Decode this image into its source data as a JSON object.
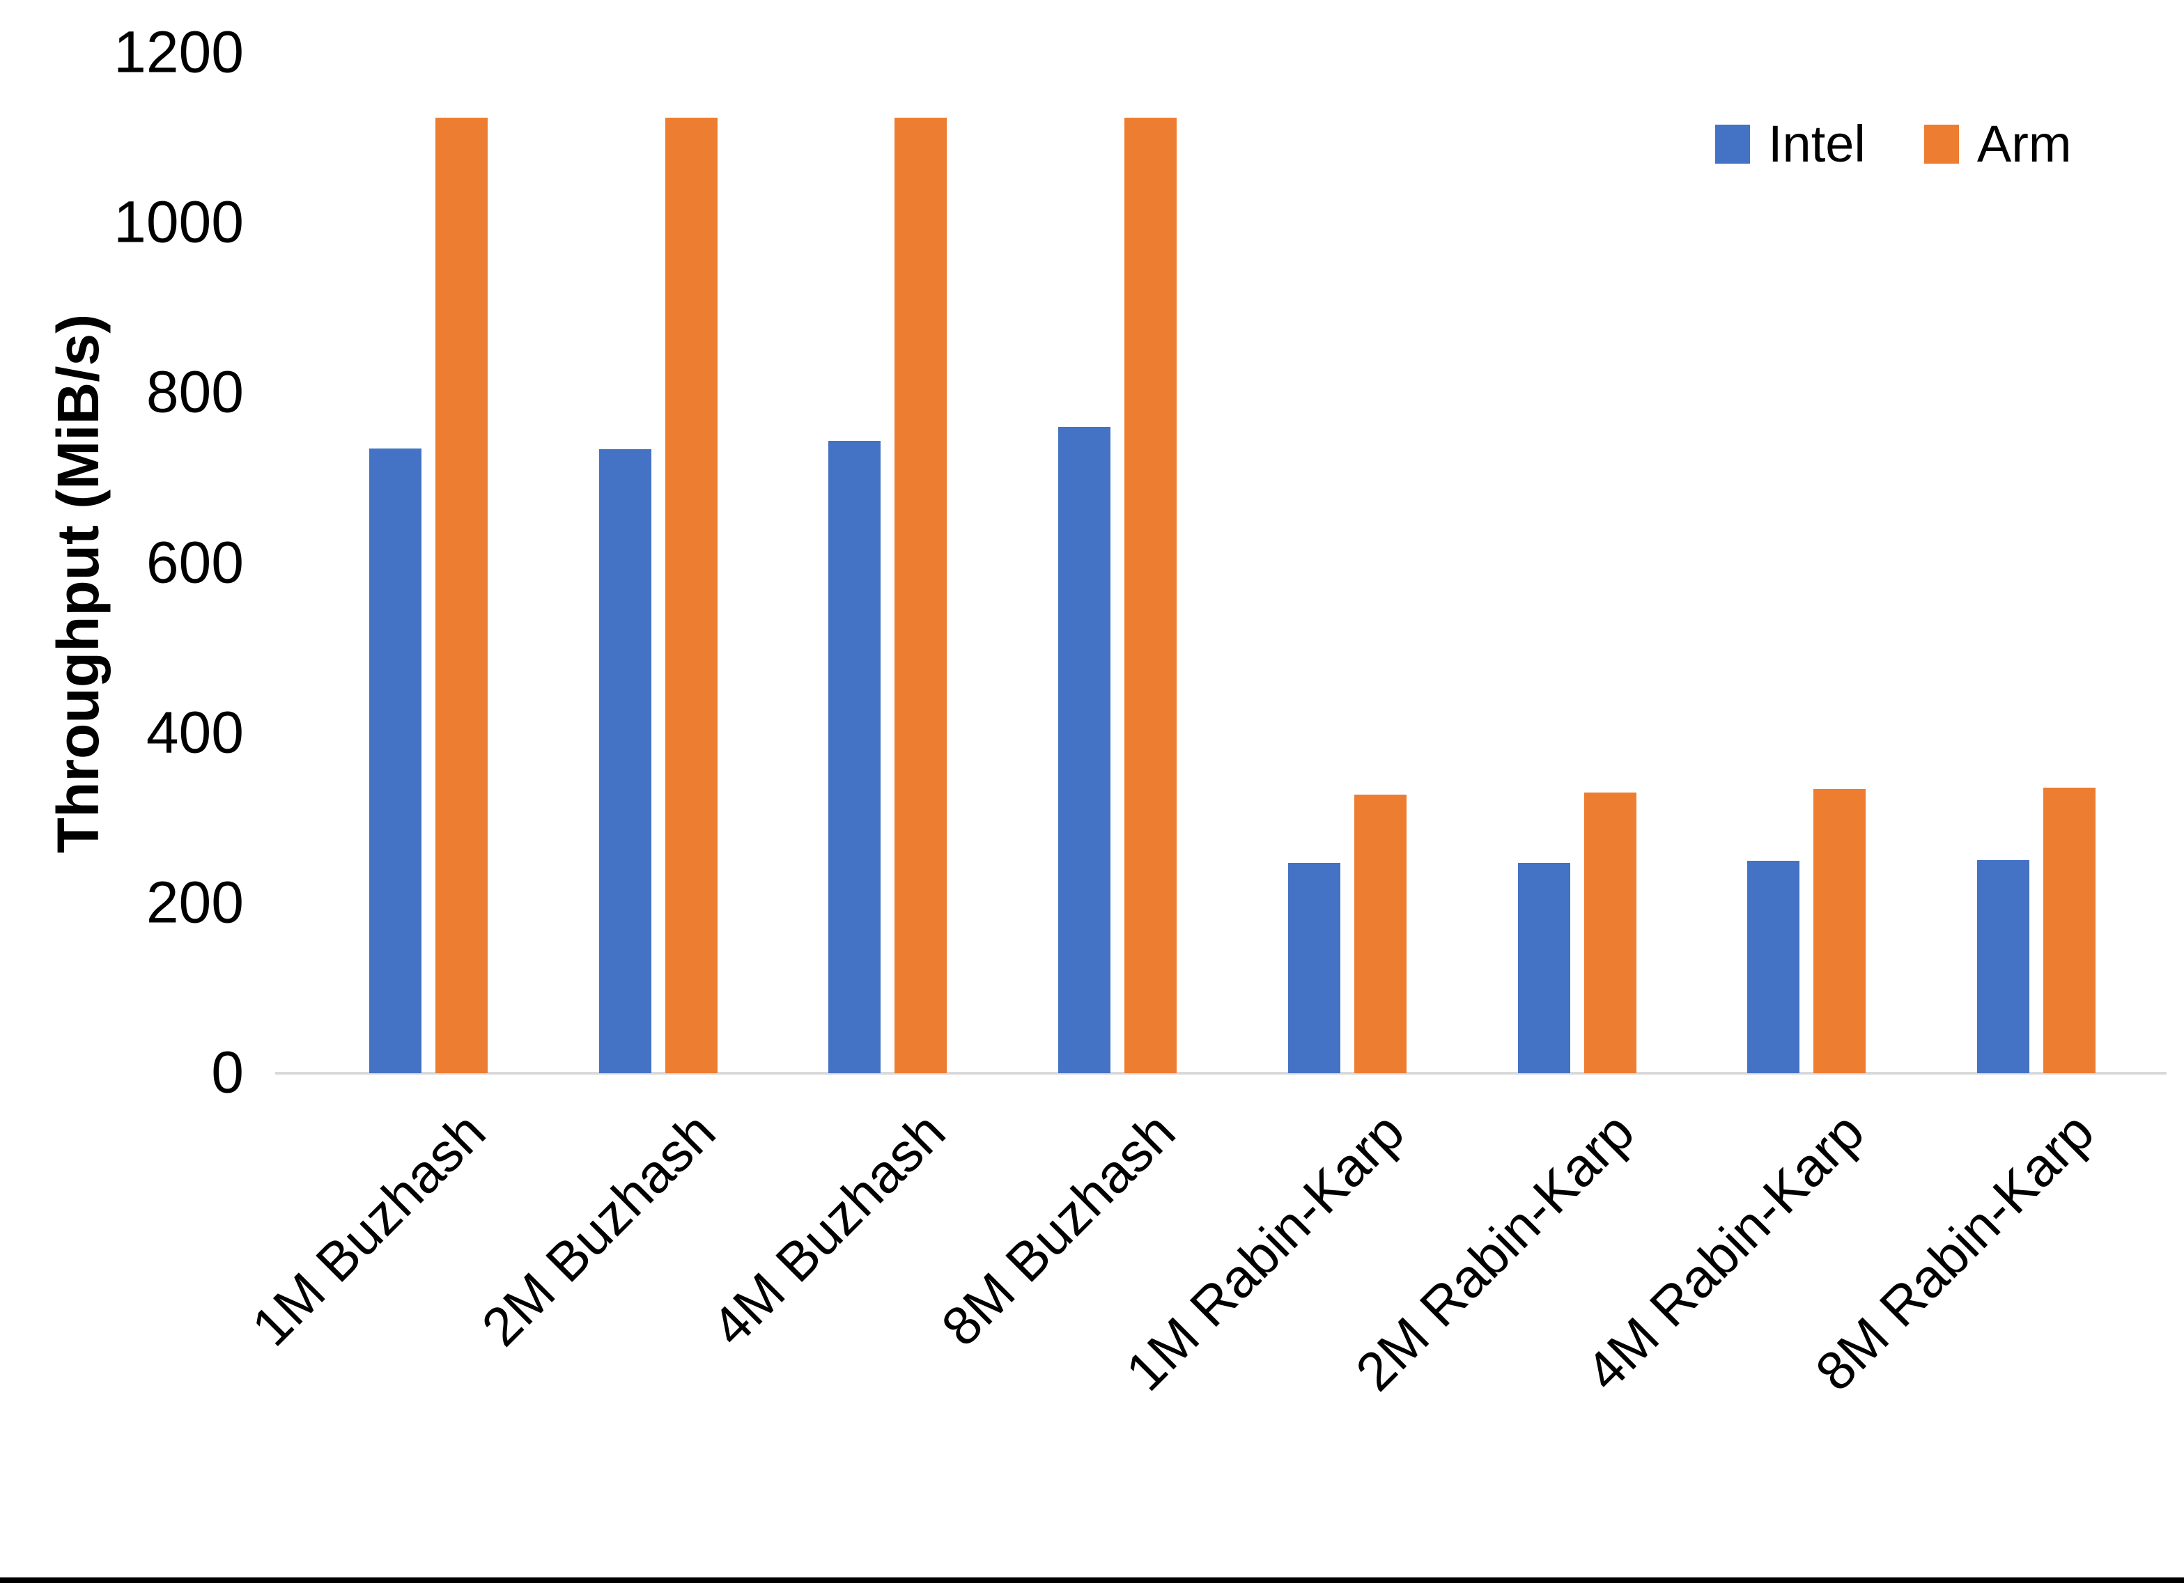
{
  "chart_data": {
    "type": "bar",
    "title": "",
    "xlabel": "",
    "ylabel": "Throughput (MiB/s)",
    "ylim": [
      0,
      1200
    ],
    "yticks": [
      1200,
      1000,
      800,
      600,
      400,
      200,
      0
    ],
    "grid": false,
    "legend_position": "top-right",
    "axis_line_color": "#d9d9d9",
    "categories": [
      "1M Buzhash",
      "2M Buzhash",
      "4M Buzhash",
      "8M Buzhash",
      "1M Rabin-Karp",
      "2M Rabin-Karp",
      "4M Rabin-Karp",
      "8M Rabin-Karp"
    ],
    "series": [
      {
        "name": "Intel",
        "color": "#4472C4",
        "values": [
          735,
          734,
          744,
          760,
          247,
          247,
          250,
          251
        ]
      },
      {
        "name": "Arm",
        "color": "#ED7D31",
        "values": [
          1124,
          1124,
          1124,
          1124,
          328,
          330,
          334,
          336
        ]
      }
    ]
  }
}
